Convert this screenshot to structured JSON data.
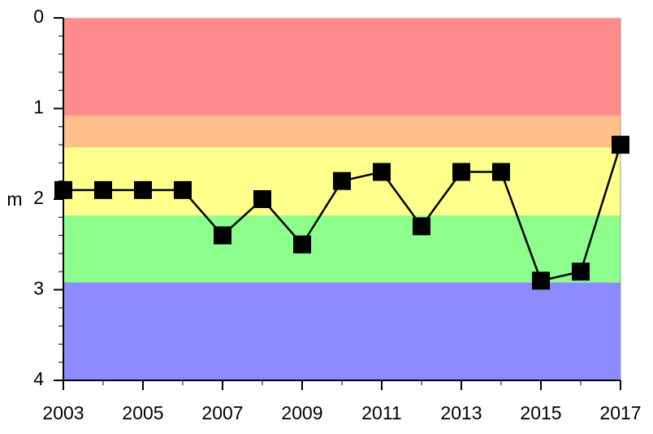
{
  "chart_data": {
    "type": "line",
    "ylabel": "m",
    "x": [
      2003,
      2004,
      2005,
      2006,
      2007,
      2008,
      2009,
      2010,
      2011,
      2012,
      2013,
      2014,
      2015,
      2016,
      2017
    ],
    "series": [
      {
        "color": "#000000",
        "values": [
          1.9,
          1.9,
          1.9,
          1.9,
          2.4,
          2.0,
          2.5,
          1.8,
          1.7,
          2.3,
          1.7,
          1.7,
          2.9,
          2.8,
          1.4
        ]
      }
    ],
    "xlim": [
      2003,
      2017
    ],
    "xticks": [
      2003,
      2005,
      2007,
      2009,
      2011,
      2013,
      2015,
      2017
    ],
    "xminorticks": [
      2004,
      2006,
      2008,
      2010,
      2012,
      2014,
      2016
    ],
    "ylim": [
      4,
      0
    ],
    "yticks": [
      0,
      1,
      2,
      3,
      4
    ],
    "yminorticks": [
      0.2,
      0.4,
      0.6,
      0.8,
      1.2,
      1.4,
      1.6,
      1.8,
      2.2,
      2.4,
      2.6,
      2.8,
      3.2,
      3.4,
      3.6,
      3.8
    ],
    "bands": [
      {
        "from": 0,
        "to": 1.08,
        "color": "#ff8c8c"
      },
      {
        "from": 1.08,
        "to": 1.43,
        "color": "#ffc08c"
      },
      {
        "from": 1.43,
        "to": 2.18,
        "color": "#ffff8c"
      },
      {
        "from": 2.18,
        "to": 2.92,
        "color": "#8cff8c"
      },
      {
        "from": 2.92,
        "to": 4,
        "color": "#8c8cff"
      }
    ]
  }
}
